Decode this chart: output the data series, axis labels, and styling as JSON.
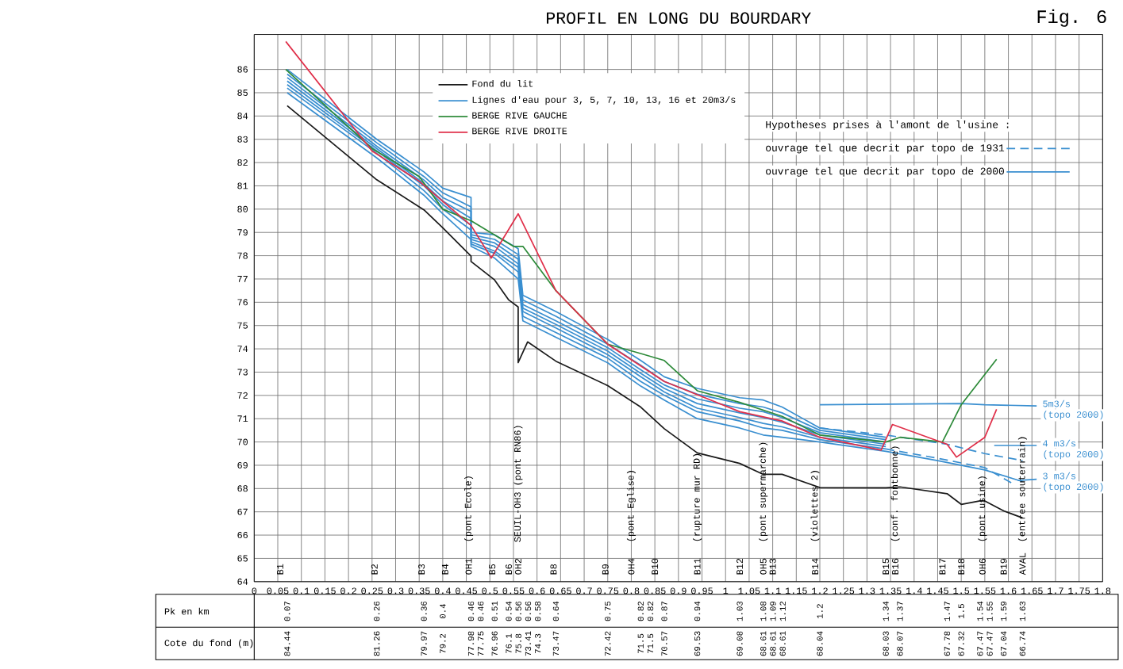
{
  "chart_data": {
    "type": "line",
    "title": "PROFIL EN LONG DU BOURDARY",
    "xlim": [
      0,
      1.8
    ],
    "ylim": [
      64,
      87.5
    ],
    "xticks": [
      0,
      0.05,
      0.1,
      0.15,
      0.2,
      0.25,
      0.3,
      0.35,
      0.4,
      0.45,
      0.5,
      0.55,
      0.6,
      0.65,
      0.7,
      0.75,
      0.8,
      0.85,
      0.9,
      0.95,
      1,
      1.05,
      1.1,
      1.15,
      1.2,
      1.25,
      1.3,
      1.35,
      1.4,
      1.45,
      1.5,
      1.55,
      1.6,
      1.65,
      1.7,
      1.75,
      1.8
    ],
    "yticks": [
      64,
      65,
      66,
      67,
      68,
      69,
      70,
      71,
      72,
      73,
      74,
      75,
      76,
      77,
      78,
      79,
      80,
      81,
      82,
      83,
      84,
      85,
      86
    ],
    "grid": true,
    "legend": "top left",
    "marker": "none",
    "annotations": [
      "Fig. 6",
      "Hypotheses prises à l'amont de l'usine :",
      "ouvrage tel que decrit par topo de 1931",
      "ouvrage tel que decrit par topo de 2000",
      "Pk en km",
      "Cote du fond (m)",
      "0.07",
      "0.26",
      "0.36",
      "0.4",
      "0.46",
      "0.46",
      "0.51",
      "0.54",
      "0.56",
      "0.56",
      "0.58",
      "0.64",
      "0.75",
      "0.82",
      "0.82",
      "0.87",
      "0.94",
      "1.03",
      "1.08",
      "1.09",
      "1.12",
      "1.2",
      "1.34",
      "1.37",
      "1.47",
      "1.5",
      "1.54",
      "1.55",
      "1.59",
      "1.63",
      "84.44",
      "81.26",
      "79.97",
      "79.2",
      "77.98",
      "77.75",
      "76.96",
      "76.1",
      "75.8",
      "73.41",
      "74.3",
      "73.47",
      "72.42",
      "71.5",
      "71.5",
      "70.57",
      "69.53",
      "69.08",
      "68.61",
      "68.61",
      "68.61",
      "68.04",
      "68.03",
      "68.07",
      "67.78",
      "67.32",
      "67.47",
      "67.47",
      "67.04",
      "66.74",
      "B1",
      "B2",
      "B3",
      "B4",
      "OH1",
      "(pont Ecole)",
      "B5",
      "B6",
      "OH2",
      "SEUIL-OH3 (pont RN86)",
      "B8",
      "B9",
      "OH4",
      "(pont Eglise)",
      "B10",
      "B11",
      "(rupture mur RD)",
      "B12",
      "OH5",
      "(pont supermarche)",
      "B13",
      "B14",
      "(violettes 2)",
      "B15",
      "B16",
      "(conf. fontbonne)",
      "B17",
      "B18",
      "OH6",
      "(pont usine)",
      "B19",
      "AVAL",
      "(entree souterrain)",
      "5m3/s",
      "(topo 2000)",
      "4 m3/s",
      "(topo 2000)",
      "3 m3/s",
      "(topo 2000)"
    ],
    "series": [
      {
        "name": "Fond du lit",
        "color": "#1a1a1a",
        "x": [
          0.07,
          0.26,
          0.36,
          0.4,
          0.46,
          0.46,
          0.51,
          0.54,
          0.56,
          0.56,
          0.58,
          0.64,
          0.75,
          0.82,
          0.82,
          0.87,
          0.94,
          1.03,
          1.08,
          1.09,
          1.12,
          1.2,
          1.34,
          1.37,
          1.47,
          1.5,
          1.54,
          1.55,
          1.59,
          1.63
        ],
        "values": [
          84.44,
          81.26,
          79.97,
          79.2,
          77.98,
          77.75,
          76.96,
          76.1,
          75.8,
          73.41,
          74.3,
          73.47,
          72.42,
          71.5,
          71.5,
          70.57,
          69.53,
          69.08,
          68.61,
          68.61,
          68.61,
          68.04,
          68.03,
          68.07,
          67.78,
          67.32,
          67.47,
          67.47,
          67.04,
          66.74
        ]
      },
      {
        "name": "Lignes d'eau pour 3, 5, 7, 10, 13, 16 et 20m3/s",
        "color": "#3a8fd0",
        "x": [
          0.07,
          0.26,
          0.36,
          0.4,
          0.46,
          0.46,
          0.51,
          0.56,
          0.57,
          0.64,
          0.75,
          0.82,
          0.87,
          0.94,
          1.03,
          1.08,
          1.12,
          1.2,
          1.34,
          1.45,
          1.55,
          1.63
        ],
        "values": [
          85.0,
          82.2,
          80.6,
          79.8,
          78.7,
          78.4,
          77.9,
          77.0,
          75.2,
          74.5,
          73.4,
          72.4,
          71.8,
          71.0,
          70.6,
          70.3,
          70.2,
          70.0,
          69.6,
          69.2,
          68.8,
          68.3
        ]
      },
      {
        "color": "#3a8fd0",
        "x": [
          0.07,
          0.26,
          0.36,
          0.4,
          0.46,
          0.46,
          0.51,
          0.56,
          0.57,
          0.64,
          0.75,
          0.82,
          0.87,
          0.94,
          1.03,
          1.08,
          1.12,
          1.2,
          1.34
        ],
        "values": [
          85.2,
          82.4,
          80.8,
          80.0,
          79.1,
          78.5,
          78.1,
          77.3,
          75.4,
          74.7,
          73.6,
          72.6,
          72.0,
          71.3,
          70.9,
          70.6,
          70.5,
          70.1,
          69.7
        ]
      },
      {
        "color": "#3a8fd0",
        "x": [
          0.07,
          0.26,
          0.36,
          0.4,
          0.46,
          0.46,
          0.51,
          0.56,
          0.57,
          0.64,
          0.75,
          0.82,
          0.87,
          0.94,
          1.03,
          1.08,
          1.12,
          1.2,
          1.34
        ],
        "values": [
          85.35,
          82.5,
          81.0,
          80.2,
          79.3,
          78.6,
          78.2,
          77.5,
          75.6,
          74.9,
          73.75,
          72.8,
          72.15,
          71.45,
          71.05,
          70.8,
          70.65,
          70.2,
          69.8
        ]
      },
      {
        "color": "#3a8fd0",
        "x": [
          0.07,
          0.26,
          0.36,
          0.4,
          0.46,
          0.46,
          0.51,
          0.56,
          0.57,
          0.64,
          0.75,
          0.82,
          0.87,
          0.94,
          1.03,
          1.08,
          1.12,
          1.2,
          1.34
        ],
        "values": [
          85.5,
          82.6,
          81.1,
          80.35,
          79.6,
          78.7,
          78.4,
          77.65,
          75.75,
          75.05,
          73.9,
          72.95,
          72.3,
          71.65,
          71.25,
          71.05,
          70.85,
          70.3,
          69.9
        ]
      },
      {
        "color": "#3a8fd0",
        "x": [
          0.07,
          0.26,
          0.36,
          0.4,
          0.46,
          0.46,
          0.51,
          0.56,
          0.57,
          0.64,
          0.75,
          0.82,
          0.87,
          0.94,
          1.03,
          1.08,
          1.12,
          1.2,
          1.34
        ],
        "values": [
          85.65,
          82.7,
          81.25,
          80.5,
          79.9,
          78.8,
          78.55,
          77.85,
          75.9,
          75.2,
          74.05,
          73.1,
          72.45,
          71.85,
          71.45,
          71.3,
          71.05,
          70.4,
          70.0
        ]
      },
      {
        "color": "#3a8fd0",
        "x": [
          0.07,
          0.26,
          0.36,
          0.4,
          0.46,
          0.46,
          0.51,
          0.56,
          0.57,
          0.64,
          0.75,
          0.82,
          0.87,
          0.94,
          1.03,
          1.08,
          1.12,
          1.2,
          1.34
        ],
        "values": [
          85.8,
          82.85,
          81.4,
          80.7,
          80.1,
          78.9,
          78.7,
          78.05,
          76.1,
          75.4,
          74.2,
          73.3,
          72.6,
          72.05,
          71.65,
          71.5,
          71.25,
          70.5,
          70.1
        ]
      },
      {
        "color": "#3a8fd0",
        "x": [
          0.07,
          0.26,
          0.36,
          0.4,
          0.46,
          0.46,
          0.51,
          0.56,
          0.57,
          0.64,
          0.75,
          0.82,
          0.87,
          0.94,
          1.03,
          1.08,
          1.12,
          1.2,
          1.34
        ],
        "values": [
          86.0,
          83.0,
          81.6,
          80.9,
          80.5,
          79.0,
          78.9,
          78.3,
          76.3,
          75.6,
          74.4,
          73.5,
          72.8,
          72.3,
          71.9,
          71.8,
          71.5,
          70.6,
          70.2
        ]
      },
      {
        "color": "#3a8fd0",
        "line_style": "dashed",
        "x": [
          1.2,
          1.34,
          1.47,
          1.55,
          1.63
        ],
        "values": [
          70.6,
          70.3,
          69.9,
          69.5,
          69.2
        ]
      },
      {
        "color": "#3a8fd0",
        "line_style": "dashed",
        "x": [
          1.34,
          1.45,
          1.55,
          1.61
        ],
        "values": [
          69.7,
          69.3,
          68.9,
          68.2
        ]
      },
      {
        "color": "#3a8fd0",
        "x": [
          1.2,
          1.5,
          1.55,
          1.66
        ],
        "values": [
          71.6,
          71.65,
          71.6,
          71.55
        ]
      },
      {
        "color": "#3a8fd0",
        "x": [
          1.57,
          1.66
        ],
        "values": [
          69.85,
          69.85
        ]
      },
      {
        "color": "#3a8fd0",
        "x": [
          1.62,
          1.66
        ],
        "values": [
          68.35,
          68.4
        ]
      },
      {
        "name": "BERGE RIVE GAUCHE",
        "color": "#2e8b3a",
        "x": [
          0.067,
          0.25,
          0.35,
          0.4,
          0.46,
          0.55,
          0.57,
          0.64,
          0.75,
          0.82,
          0.87,
          0.94,
          1.03,
          1.12,
          1.2,
          1.34,
          1.37,
          1.46,
          1.5,
          1.575
        ],
        "values": [
          86.0,
          82.6,
          81.4,
          80.0,
          79.5,
          78.4,
          78.4,
          76.5,
          74.2,
          73.8,
          73.5,
          72.2,
          71.7,
          71.1,
          70.3,
          70.0,
          70.2,
          70.0,
          71.6,
          73.55
        ]
      },
      {
        "name": "BERGE RIVE DROITE",
        "color": "#e0304a",
        "x": [
          0.067,
          0.25,
          0.35,
          0.46,
          0.503,
          0.56,
          0.64,
          0.75,
          0.87,
          1.03,
          1.12,
          1.2,
          1.33,
          1.354,
          1.47,
          1.49,
          1.55,
          1.575
        ],
        "values": [
          87.2,
          82.5,
          81.2,
          79.3,
          77.9,
          79.8,
          76.5,
          74.2,
          72.6,
          71.3,
          70.9,
          70.2,
          69.65,
          70.75,
          69.9,
          69.35,
          70.2,
          71.4
        ]
      }
    ]
  }
}
